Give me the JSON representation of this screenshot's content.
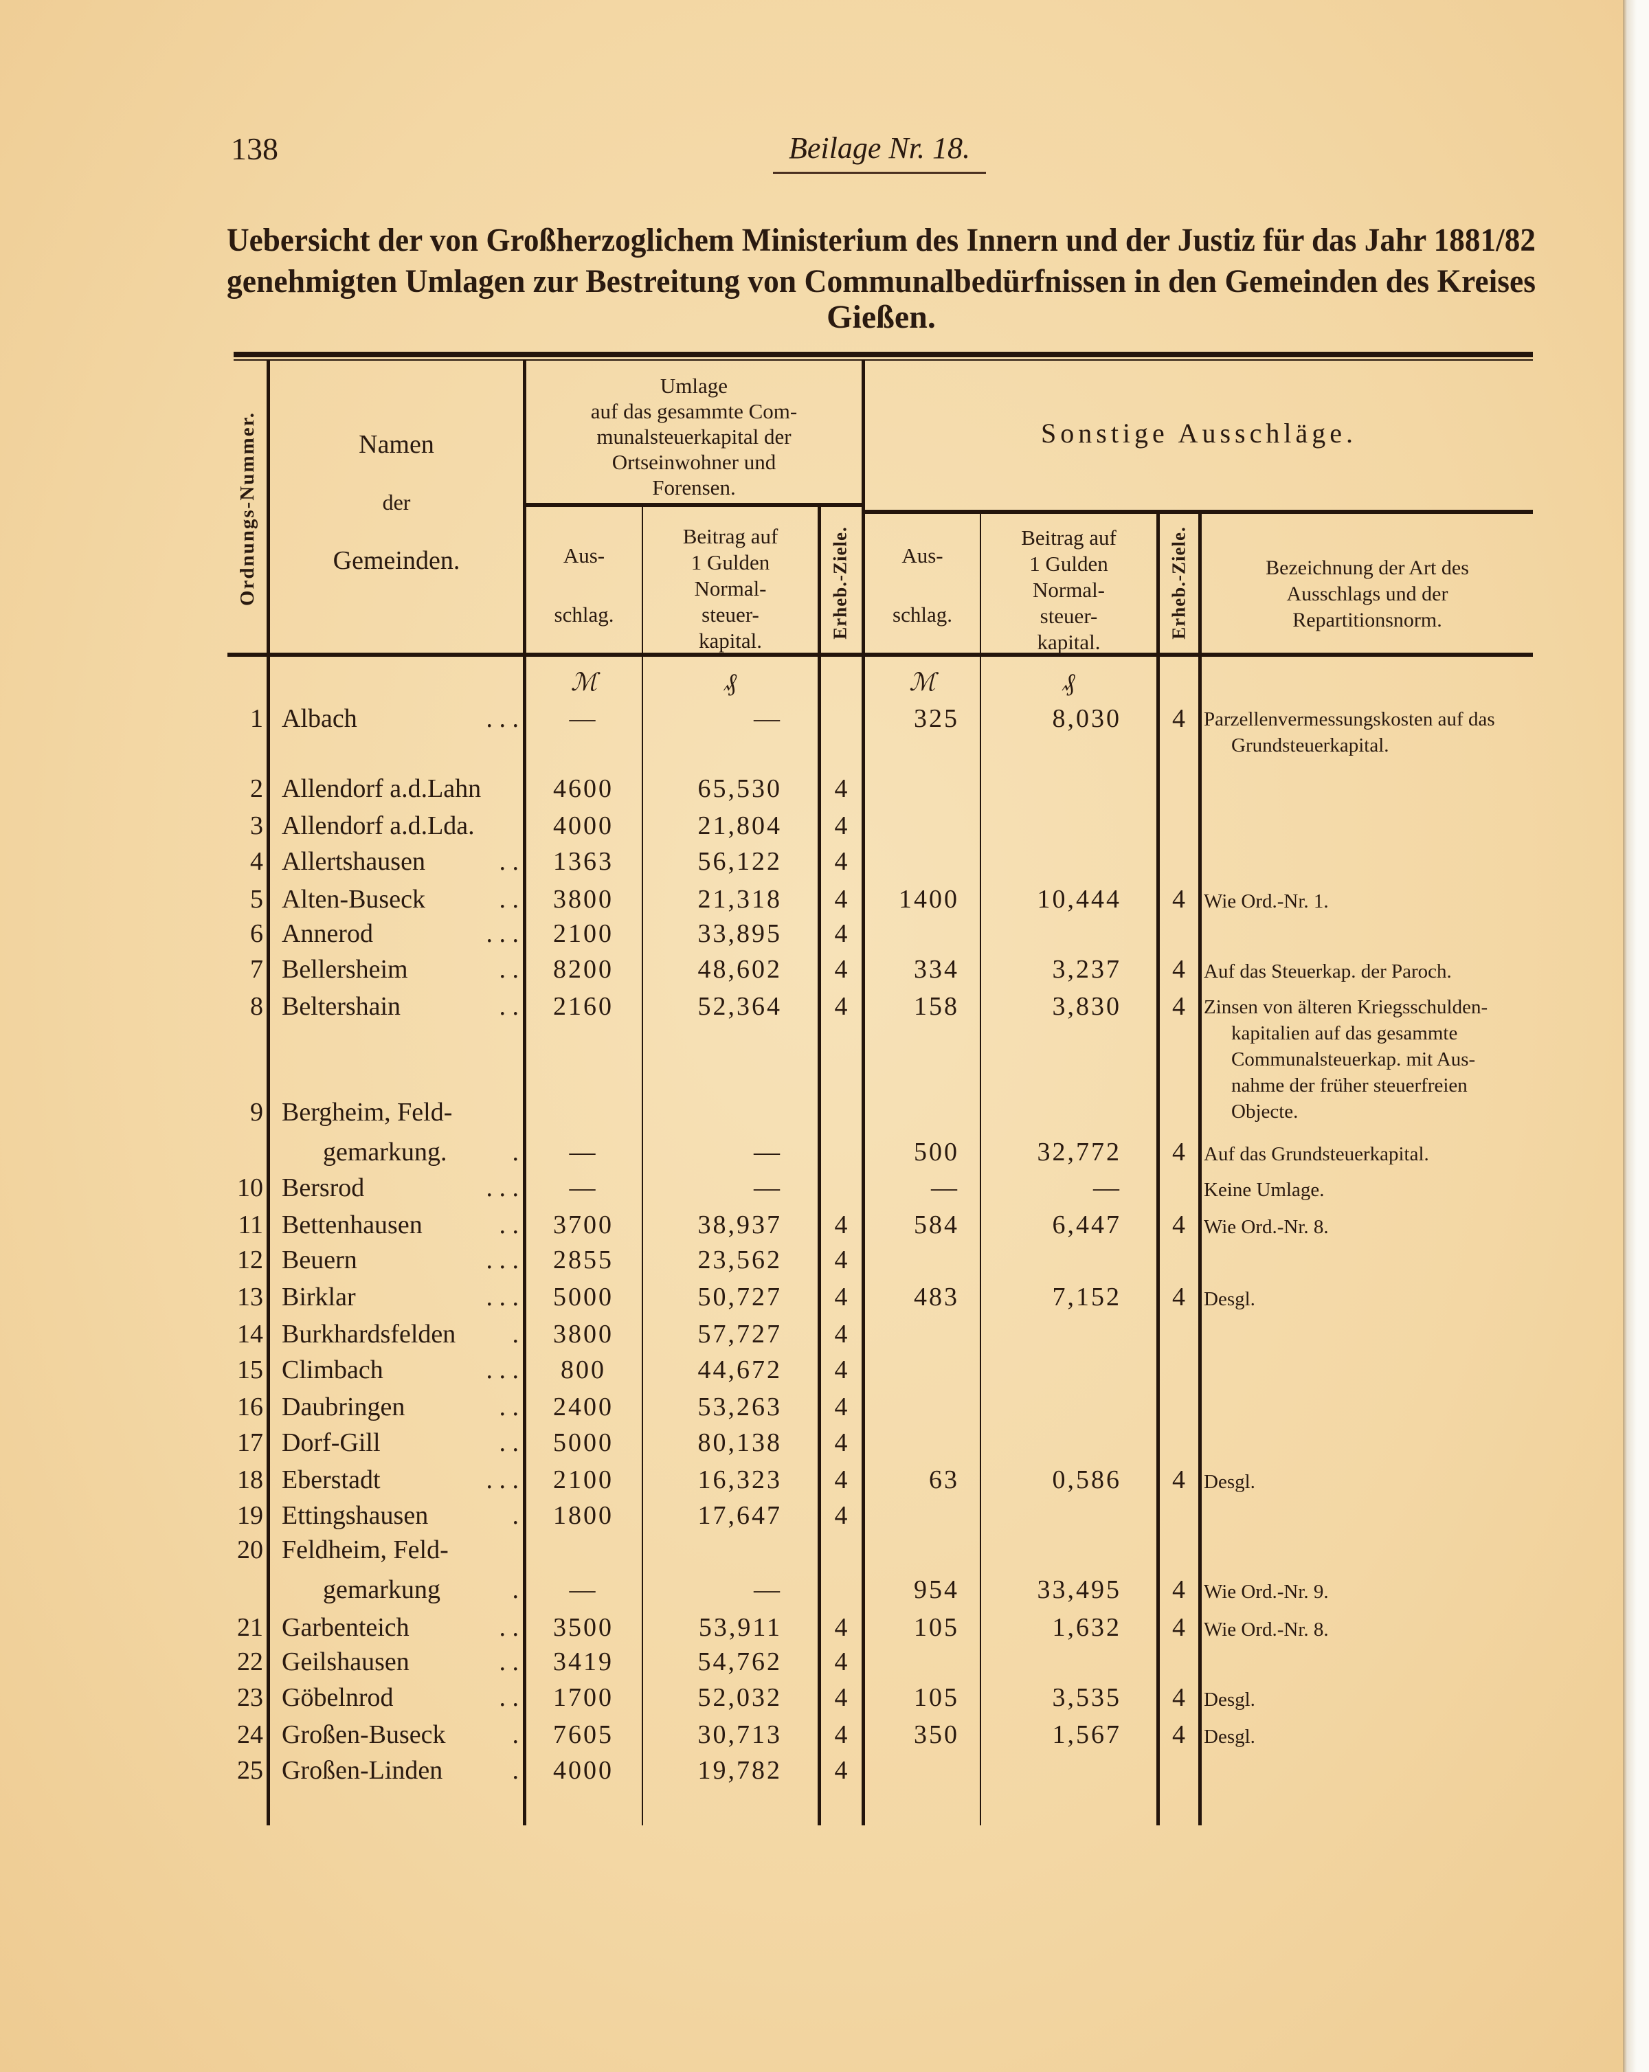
{
  "page_number": "138",
  "running_head": "Beilage Nr. 18.",
  "title_lines": [
    "Uebersicht der von Großherzoglichem Ministerium des Innern und der Justiz für das Jahr 1881/82",
    "genehmigten Umlagen zur Bestreitung von Communalbedürfnissen in den Gemeinden des Kreises",
    "Gießen."
  ],
  "headers": {
    "ordnungs": "Ordnungs-Nummer.",
    "namen": [
      "Namen",
      "der",
      "Gemeinden."
    ],
    "umlage": [
      "Umlage",
      "auf das gesammte Com-",
      "munalsteuerkapital der",
      "Ortseinwohner und",
      "Forensen."
    ],
    "sonstige": "Sonstige Ausschläge.",
    "ausschlag": [
      "Aus-",
      "schlag."
    ],
    "beitrag": [
      "Beitrag auf",
      "1 Gulden",
      "Normal-",
      "steuer-",
      "kapital."
    ],
    "erheb": "Erheb.-Ziele.",
    "bezeichnung": [
      "Bezeichnung der Art des",
      "Ausschlags und der",
      "Repartitionsnorm."
    ]
  },
  "units": {
    "mark": "ℳ",
    "pfennig": "₰"
  },
  "rows": [
    {
      "nr": "1",
      "name": [
        "Albach"
      ],
      "leader": ". . .",
      "aus1": "—",
      "bei1": "—",
      "z1": "",
      "aus2": "325",
      "bei2": "8,030",
      "z2": "4",
      "note": [
        "Parzellenvermessungskosten auf das",
        "Grundsteuerkapital."
      ]
    },
    {
      "nr": "2",
      "name": [
        "Allendorf a.d.Lahn"
      ],
      "leader": "",
      "aus1": "4600",
      "bei1": "65,530",
      "z1": "4",
      "aus2": "",
      "bei2": "",
      "z2": "",
      "note": []
    },
    {
      "nr": "3",
      "name": [
        "Allendorf a.d.Lda."
      ],
      "leader": "",
      "aus1": "4000",
      "bei1": "21,804",
      "z1": "4",
      "aus2": "",
      "bei2": "",
      "z2": "",
      "note": []
    },
    {
      "nr": "4",
      "name": [
        "Allertshausen"
      ],
      "leader": ". .",
      "aus1": "1363",
      "bei1": "56,122",
      "z1": "4",
      "aus2": "",
      "bei2": "",
      "z2": "",
      "note": []
    },
    {
      "nr": "5",
      "name": [
        "Alten-Buseck"
      ],
      "leader": ". .",
      "aus1": "3800",
      "bei1": "21,318",
      "z1": "4",
      "aus2": "1400",
      "bei2": "10,444",
      "z2": "4",
      "note": [
        "Wie Ord.-Nr. 1."
      ]
    },
    {
      "nr": "6",
      "name": [
        "Annerod"
      ],
      "leader": ". . .",
      "aus1": "2100",
      "bei1": "33,895",
      "z1": "4",
      "aus2": "",
      "bei2": "",
      "z2": "",
      "note": []
    },
    {
      "nr": "7",
      "name": [
        "Bellersheim"
      ],
      "leader": ". .",
      "aus1": "8200",
      "bei1": "48,602",
      "z1": "4",
      "aus2": "334",
      "bei2": "3,237",
      "z2": "4",
      "note": [
        "Auf das Steuerkap. der Paroch."
      ]
    },
    {
      "nr": "8",
      "name": [
        "Beltershain"
      ],
      "leader": ". .",
      "aus1": "2160",
      "bei1": "52,364",
      "z1": "4",
      "aus2": "158",
      "bei2": "3,830",
      "z2": "4",
      "note": [
        "Zinsen von älteren Kriegsschulden-",
        "kapitalien auf das gesammte",
        "Communalsteuerkap. mit Aus-",
        "nahme der früher steuerfreien",
        "Objecte."
      ]
    },
    {
      "nr": "9",
      "name": [
        "Bergheim, Feld-",
        "gemarkung."
      ],
      "leader": ".",
      "aus1": "—",
      "bei1": "—",
      "z1": "",
      "aus2": "500",
      "bei2": "32,772",
      "z2": "4",
      "note": [
        "Auf das Grundsteuerkapital."
      ]
    },
    {
      "nr": "10",
      "name": [
        "Bersrod"
      ],
      "leader": ". . .",
      "aus1": "—",
      "bei1": "—",
      "z1": "",
      "aus2": "—",
      "bei2": "—",
      "z2": "",
      "note": [
        "Keine Umlage."
      ]
    },
    {
      "nr": "11",
      "name": [
        "Bettenhausen"
      ],
      "leader": ". .",
      "aus1": "3700",
      "bei1": "38,937",
      "z1": "4",
      "aus2": "584",
      "bei2": "6,447",
      "z2": "4",
      "note": [
        "Wie Ord.-Nr. 8."
      ]
    },
    {
      "nr": "12",
      "name": [
        "Beuern"
      ],
      "leader": ". . .",
      "aus1": "2855",
      "bei1": "23,562",
      "z1": "4",
      "aus2": "",
      "bei2": "",
      "z2": "",
      "note": []
    },
    {
      "nr": "13",
      "name": [
        "Birklar"
      ],
      "leader": ". . .",
      "aus1": "5000",
      "bei1": "50,727",
      "z1": "4",
      "aus2": "483",
      "bei2": "7,152",
      "z2": "4",
      "note": [
        "Desgl."
      ]
    },
    {
      "nr": "14",
      "name": [
        "Burkhardsfelden"
      ],
      "leader": ".",
      "aus1": "3800",
      "bei1": "57,727",
      "z1": "4",
      "aus2": "",
      "bei2": "",
      "z2": "",
      "note": []
    },
    {
      "nr": "15",
      "name": [
        "Climbach"
      ],
      "leader": ". . .",
      "aus1": "800",
      "bei1": "44,672",
      "z1": "4",
      "aus2": "",
      "bei2": "",
      "z2": "",
      "note": []
    },
    {
      "nr": "16",
      "name": [
        "Daubringen"
      ],
      "leader": ". .",
      "aus1": "2400",
      "bei1": "53,263",
      "z1": "4",
      "aus2": "",
      "bei2": "",
      "z2": "",
      "note": []
    },
    {
      "nr": "17",
      "name": [
        "Dorf-Gill"
      ],
      "leader": ". .",
      "aus1": "5000",
      "bei1": "80,138",
      "z1": "4",
      "aus2": "",
      "bei2": "",
      "z2": "",
      "note": []
    },
    {
      "nr": "18",
      "name": [
        "Eberstadt"
      ],
      "leader": ". . .",
      "aus1": "2100",
      "bei1": "16,323",
      "z1": "4",
      "aus2": "63",
      "bei2": "0,586",
      "z2": "4",
      "note": [
        "Desgl."
      ]
    },
    {
      "nr": "19",
      "name": [
        "Ettingshausen"
      ],
      "leader": ".",
      "aus1": "1800",
      "bei1": "17,647",
      "z1": "4",
      "aus2": "",
      "bei2": "",
      "z2": "",
      "note": []
    },
    {
      "nr": "20",
      "name": [
        "Feldheim, Feld-",
        "gemarkung"
      ],
      "leader": ".",
      "aus1": "—",
      "bei1": "—",
      "z1": "",
      "aus2": "954",
      "bei2": "33,495",
      "z2": "4",
      "note": [
        "Wie Ord.-Nr. 9."
      ]
    },
    {
      "nr": "21",
      "name": [
        "Garbenteich"
      ],
      "leader": ". .",
      "aus1": "3500",
      "bei1": "53,911",
      "z1": "4",
      "aus2": "105",
      "bei2": "1,632",
      "z2": "4",
      "note": [
        "Wie Ord.-Nr. 8."
      ]
    },
    {
      "nr": "22",
      "name": [
        "Geilshausen"
      ],
      "leader": ". .",
      "aus1": "3419",
      "bei1": "54,762",
      "z1": "4",
      "aus2": "",
      "bei2": "",
      "z2": "",
      "note": []
    },
    {
      "nr": "23",
      "name": [
        "Göbelnrod"
      ],
      "leader": ". .",
      "aus1": "1700",
      "bei1": "52,032",
      "z1": "4",
      "aus2": "105",
      "bei2": "3,535",
      "z2": "4",
      "note": [
        "Desgl."
      ]
    },
    {
      "nr": "24",
      "name": [
        "Großen-Buseck"
      ],
      "leader": ".",
      "aus1": "7605",
      "bei1": "30,713",
      "z1": "4",
      "aus2": "350",
      "bei2": "1,567",
      "z2": "4",
      "note": [
        "Desgl."
      ]
    },
    {
      "nr": "25",
      "name": [
        "Großen-Linden"
      ],
      "leader": ".",
      "aus1": "4000",
      "bei1": "19,782",
      "z1": "4",
      "aus2": "",
      "bei2": "",
      "z2": "",
      "note": []
    }
  ],
  "colors": {
    "paper": "#f3d7a4",
    "ink": "#2a1a10"
  }
}
